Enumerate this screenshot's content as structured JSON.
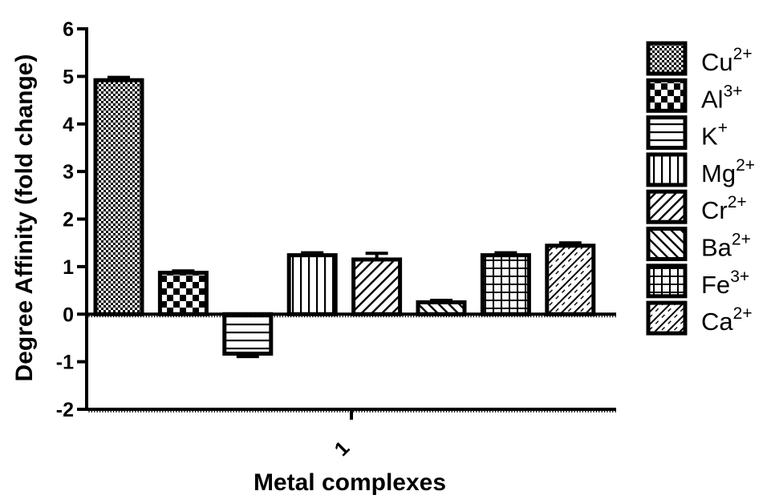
{
  "chart_data": {
    "type": "bar",
    "xlabel": "Metal complexes",
    "ylabel": "Degree Affinity (fold change)",
    "categories": [
      "1"
    ],
    "ylim": [
      -2,
      6
    ],
    "yticks": [
      -2,
      -1,
      0,
      1,
      2,
      3,
      4,
      5,
      6
    ],
    "grid": false,
    "legend_position": "right",
    "series": [
      {
        "name": "Cu",
        "charge": "2+",
        "pattern": "fine-checker",
        "values": [
          4.92
        ],
        "error": [
          0.06
        ]
      },
      {
        "name": "Al",
        "charge": "3+",
        "pattern": "checker",
        "values": [
          0.87
        ],
        "error": [
          0.04
        ]
      },
      {
        "name": "K",
        "charge": "+",
        "pattern": "horizontal-lines",
        "values": [
          -0.83
        ],
        "error": [
          0.06
        ]
      },
      {
        "name": "Mg",
        "charge": "2+",
        "pattern": "vertical-lines",
        "values": [
          1.24
        ],
        "error": [
          0.05
        ]
      },
      {
        "name": "Cr",
        "charge": "2+",
        "pattern": "diagonal-up",
        "values": [
          1.15
        ],
        "error": [
          0.13
        ]
      },
      {
        "name": "Ba",
        "charge": "2+",
        "pattern": "diagonal-down",
        "values": [
          0.25
        ],
        "error": [
          0.04
        ]
      },
      {
        "name": "Fe",
        "charge": "3+",
        "pattern": "grid",
        "values": [
          1.24
        ],
        "error": [
          0.05
        ]
      },
      {
        "name": "Ca",
        "charge": "2+",
        "pattern": "crosshatch",
        "values": [
          1.44
        ],
        "error": [
          0.06
        ]
      }
    ]
  }
}
